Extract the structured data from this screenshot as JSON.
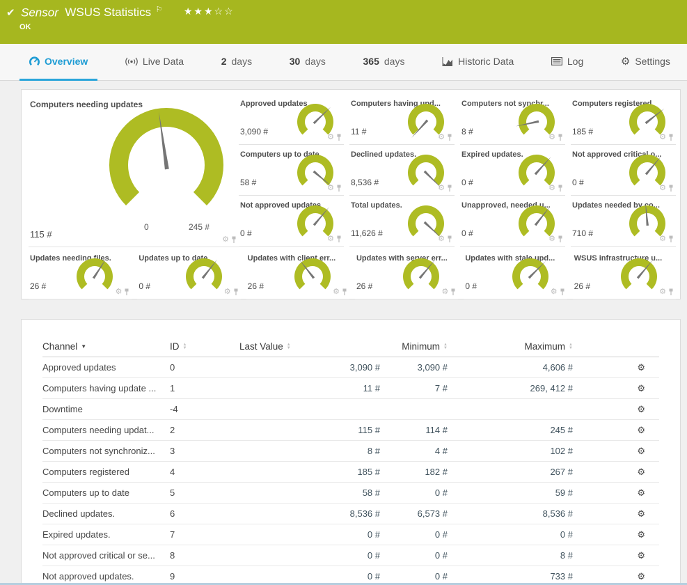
{
  "header": {
    "status_icon": "✔",
    "kind_label": "Sensor",
    "title": "WSUS Statistics",
    "flag": "⚐",
    "stars": "★★★☆☆",
    "status_text": "OK"
  },
  "tabs": [
    {
      "label": "Overview",
      "icon": "gauge-icon",
      "active": true
    },
    {
      "label": "Live Data",
      "icon": "broadcast-icon",
      "active": false
    },
    {
      "num": "2",
      "label": "days",
      "active": false
    },
    {
      "num": "30",
      "label": "days",
      "active": false
    },
    {
      "num": "365",
      "label": "days",
      "active": false
    },
    {
      "label": "Historic Data",
      "icon": "area-chart-icon",
      "active": false
    },
    {
      "label": "Log",
      "icon": "log-icon",
      "active": false
    },
    {
      "label": "Settings",
      "icon": "gear-icon",
      "active": false
    }
  ],
  "big_gauge": {
    "title": "Computers needing updates",
    "value": "115 #",
    "min_label": "0",
    "max_label": "245 #",
    "needle": -8
  },
  "gauges": [
    {
      "title": "Approved updates",
      "value": "3,090 #",
      "needle": 46
    },
    {
      "title": "Computers having upd...",
      "value": "11 #",
      "needle": -138
    },
    {
      "title": "Computers not synchr...",
      "value": "8 #",
      "needle": -102
    },
    {
      "title": "Computers registered",
      "value": "185 #",
      "needle": 52
    },
    {
      "title": "Computers up to date",
      "value": "58 #",
      "needle": 130
    },
    {
      "title": "Declined updates.",
      "value": "8,536 #",
      "needle": 135
    },
    {
      "title": "Expired updates.",
      "value": "0 #",
      "needle": 42
    },
    {
      "title": "Not approved critical o...",
      "value": "0 #",
      "needle": 40
    },
    {
      "title": "Not approved updates",
      "value": "0 #",
      "needle": 40
    },
    {
      "title": "Total updates.",
      "value": "11,626 #",
      "needle": 133
    },
    {
      "title": "Unapproved, needed u...",
      "value": "0 #",
      "needle": 38
    },
    {
      "title": "Updates needed by co...",
      "value": "710 #",
      "needle": -5
    },
    {
      "title": "Updates needing files.",
      "value": "26 #",
      "needle": 33
    },
    {
      "title": "Updates up to date.",
      "value": "0 #",
      "needle": 38
    },
    {
      "title": "Updates with client err...",
      "value": "26 #",
      "needle": -38
    },
    {
      "title": "Updates with server err...",
      "value": "26 #",
      "needle": 40
    },
    {
      "title": "Updates with stale upd...",
      "value": "0 #",
      "needle": 45
    },
    {
      "title": "WSUS infrastructure u...",
      "value": "26 #",
      "needle": 40
    }
  ],
  "table": {
    "columns": [
      {
        "label": "Channel",
        "sort": "active",
        "align": "left"
      },
      {
        "label": "ID",
        "sort": "idle",
        "align": "left"
      },
      {
        "label": "Last Value",
        "sort": "idle",
        "align": "left"
      },
      {
        "label": "Minimum",
        "sort": "idle",
        "align": "right"
      },
      {
        "label": "Maximum",
        "sort": "idle",
        "align": "right"
      }
    ],
    "rows": [
      {
        "channel": "Approved updates",
        "id": "0",
        "last": "3,090 #",
        "min": "3,090 #",
        "max": "4,606 #"
      },
      {
        "channel": "Computers having update ...",
        "id": "1",
        "last": "11 #",
        "min": "7 #",
        "max": "269, 412 #"
      },
      {
        "channel": "Downtime",
        "id": "-4",
        "last": "",
        "min": "",
        "max": ""
      },
      {
        "channel": "Computers needing updat...",
        "id": "2",
        "last": "115 #",
        "min": "114 #",
        "max": "245 #"
      },
      {
        "channel": "Computers not synchroniz...",
        "id": "3",
        "last": "8 #",
        "min": "4 #",
        "max": "102 #"
      },
      {
        "channel": "Computers registered",
        "id": "4",
        "last": "185 #",
        "min": "182 #",
        "max": "267 #"
      },
      {
        "channel": "Computers up to date",
        "id": "5",
        "last": "58 #",
        "min": "0 #",
        "max": "59 #"
      },
      {
        "channel": "Declined updates.",
        "id": "6",
        "last": "8,536 #",
        "min": "6,573 #",
        "max": "8,536 #"
      },
      {
        "channel": "Expired updates.",
        "id": "7",
        "last": "0 #",
        "min": "0 #",
        "max": "0 #"
      },
      {
        "channel": "Not approved critical or se...",
        "id": "8",
        "last": "0 #",
        "min": "0 #",
        "max": "8 #"
      },
      {
        "channel": "Not approved updates.",
        "id": "9",
        "last": "0 #",
        "min": "0 #",
        "max": "733 #"
      }
    ]
  },
  "colors": {
    "header_green": "#a6b71f",
    "gauge_green": "#aebc23",
    "needle_grey": "#757575",
    "tab_blue": "#1e9cd4"
  }
}
